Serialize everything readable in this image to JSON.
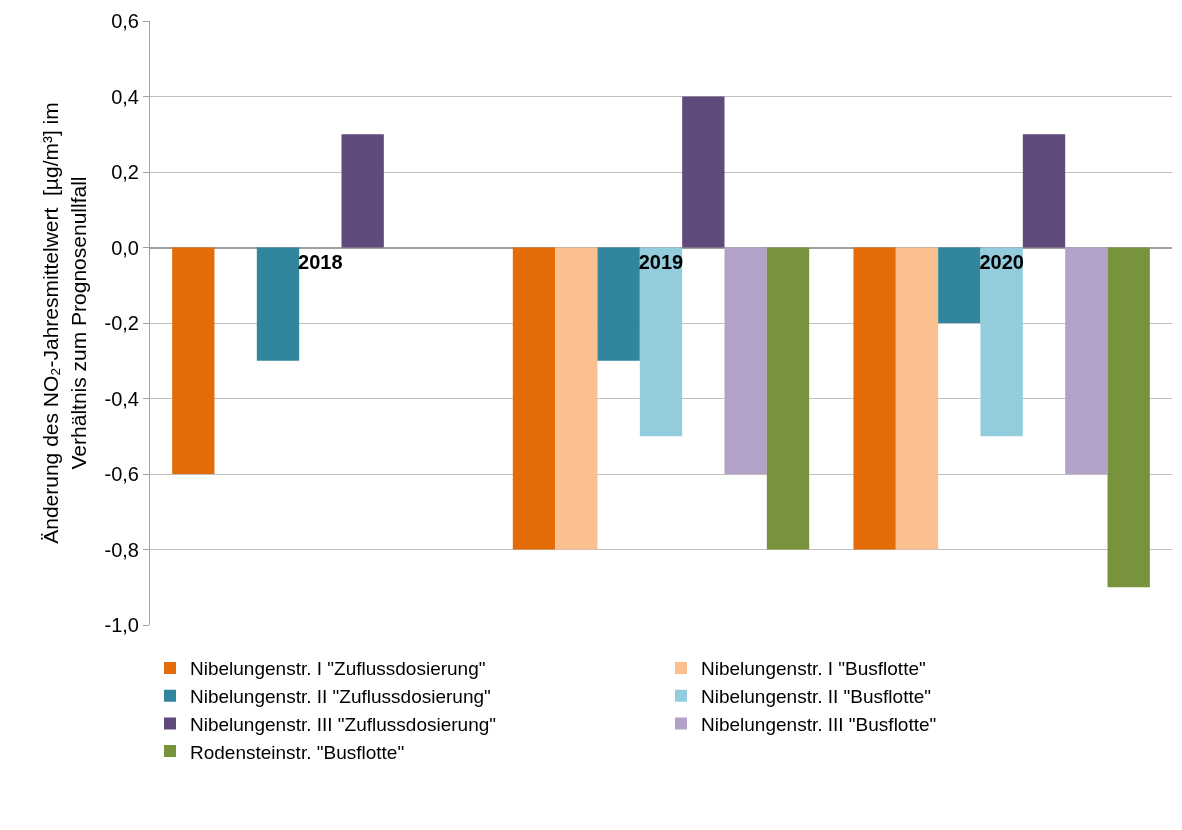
{
  "chart_data": {
    "type": "bar",
    "ylabel": "Änderung des NO₂-Jahresmittelwert  [µg/m³] im\nVerhältnis zum Prognosenullfall",
    "categories": [
      "2018",
      "2019",
      "2020"
    ],
    "series": [
      {
        "name": "Nibelungenstr. I \"Zuflussdosierung\"",
        "color": "#e36c09",
        "values": [
          -0.6,
          -0.8,
          -0.8
        ]
      },
      {
        "name": "Nibelungenstr. I \"Busflotte\"",
        "color": "#fac090",
        "values": [
          null,
          -0.8,
          -0.8
        ]
      },
      {
        "name": "Nibelungenstr. II \"Zuflussdosierung\"",
        "color": "#31859c",
        "values": [
          -0.3,
          -0.3,
          -0.2
        ]
      },
      {
        "name": "Nibelungenstr. II \"Busflotte\"",
        "color": "#93cddd",
        "values": [
          null,
          -0.5,
          -0.5
        ]
      },
      {
        "name": "Nibelungenstr. III \"Zuflussdosierung\"",
        "color": "#604a7b",
        "values": [
          0.3,
          0.4,
          0.3
        ]
      },
      {
        "name": "Nibelungenstr. III \"Busflotte\"",
        "color": "#b3a2c7",
        "values": [
          null,
          -0.6,
          -0.6
        ]
      },
      {
        "name": "Rodensteinstr. \"Busflotte\"",
        "color": "#77933c",
        "values": [
          null,
          -0.8,
          -0.9
        ]
      }
    ],
    "ylim": [
      -1.0,
      0.6
    ],
    "yticks": [
      {
        "value": -1.0,
        "label": "-1,0"
      },
      {
        "value": -0.8,
        "label": "-0,8"
      },
      {
        "value": -0.6,
        "label": "-0,6"
      },
      {
        "value": -0.4,
        "label": "-0,4"
      },
      {
        "value": -0.2,
        "label": "-0,2"
      },
      {
        "value": 0,
        "label": "0,0"
      },
      {
        "value": 0.2,
        "label": "0,2"
      },
      {
        "value": 0.4,
        "label": "0,4"
      },
      {
        "value": 0.6,
        "label": "0,6"
      }
    ],
    "grid": "y",
    "legend": "bottom"
  }
}
